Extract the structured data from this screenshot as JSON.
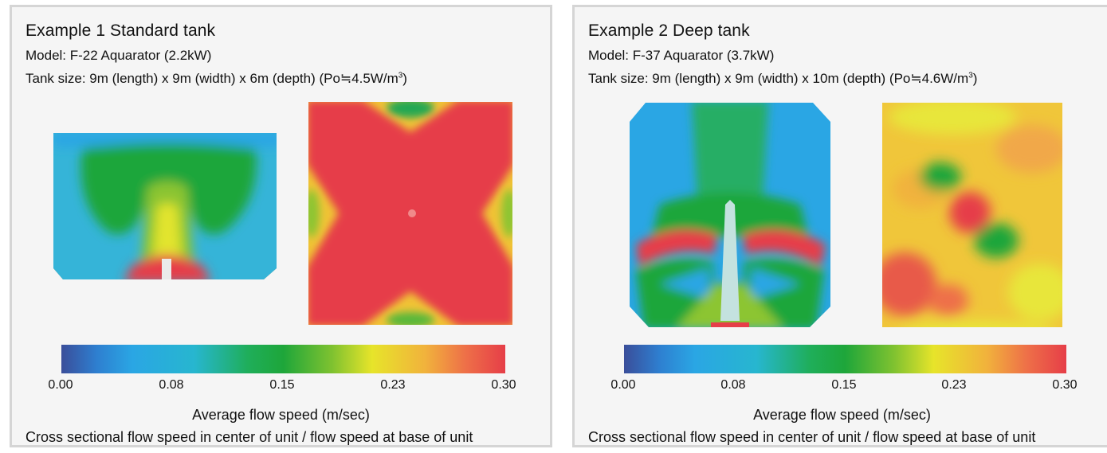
{
  "examples": [
    {
      "title": "Example 1  Standard tank",
      "model": "Model: F-22 Aquarator (2.2kW)",
      "tank_size_prefix": "Tank size: 9m (length)  x 9m (width)  x 6m (depth)  (Po≒4.5W/m",
      "tank_size_sup": "3",
      "tank_size_suffix": ")",
      "colorbar_ticks": [
        "0.00",
        "0.08",
        "0.15",
        "0.23",
        "0.30"
      ],
      "colorbar_label": "Average flow speed (m/sec)",
      "caption": "Cross sectional flow speed in center of unit / flow speed at base of unit"
    },
    {
      "title": "Example 2  Deep tank",
      "model": "Model: F-37 Aquarator (3.7kW)",
      "tank_size_prefix": "Tank size: 9m (length)  x 9m (width)  x 10m (depth)  (Po≒4.6W/m",
      "tank_size_sup": "3",
      "tank_size_suffix": ")",
      "colorbar_ticks": [
        "0.00",
        "0.08",
        "0.15",
        "0.23",
        "0.30"
      ],
      "colorbar_label": "Average flow speed (m/sec)",
      "caption": "Cross sectional flow speed in center of unit / flow speed at base of unit"
    }
  ],
  "colors": {
    "low": "#3a4e9a",
    "cyan": "#2aa6e4",
    "green": "#1ea63a",
    "yellow": "#e7e42a",
    "orange": "#f1b23c",
    "high": "#e63e48"
  }
}
